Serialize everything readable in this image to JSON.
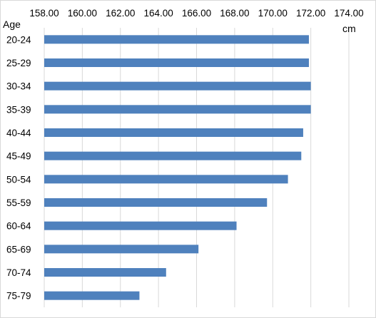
{
  "chart_data": {
    "type": "bar",
    "orientation": "horizontal",
    "categories": [
      "20-24",
      "25-29",
      "30-34",
      "35-39",
      "40-44",
      "45-49",
      "50-54",
      "55-59",
      "60-64",
      "65-69",
      "70-74",
      "75-79"
    ],
    "values": [
      171.9,
      171.9,
      172.0,
      172.0,
      171.6,
      171.5,
      170.8,
      169.7,
      168.1,
      166.1,
      164.4,
      163.0
    ],
    "xlim": [
      158,
      174
    ],
    "xticks": [
      "158.00",
      "160.00",
      "162.00",
      "164.00",
      "166.00",
      "168.00",
      "170.00",
      "172.00",
      "174.00"
    ],
    "ylabel": "Age",
    "xlabel": "cm",
    "x_axis_position": "top",
    "grid": true,
    "bar_color": "#4f81bd",
    "grid_color": "#d9d9d9"
  }
}
